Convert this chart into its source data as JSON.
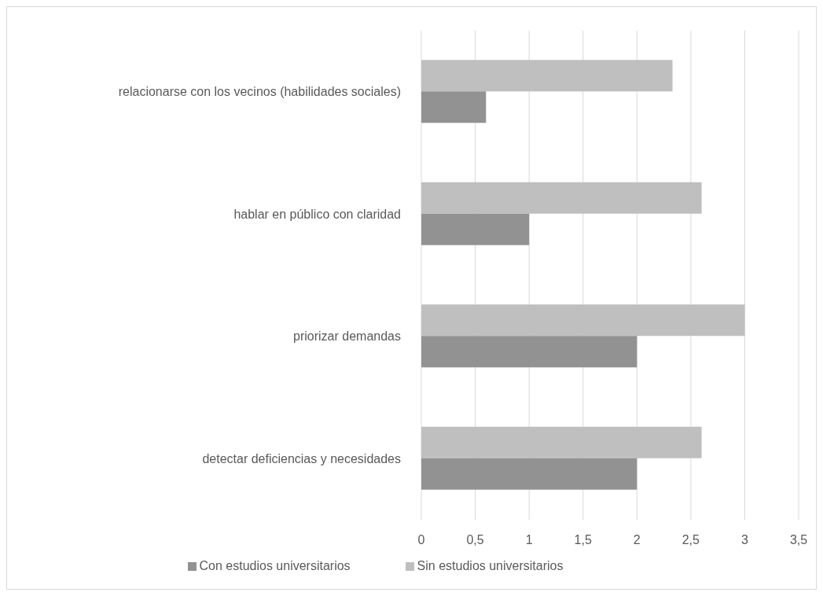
{
  "chart_data": {
    "type": "bar",
    "orientation": "horizontal",
    "categories": [
      "relacionarse con los vecinos (habilidades sociales)",
      "hablar en público con claridad",
      "priorizar demandas",
      "detectar deficiencias y necesidades"
    ],
    "series": [
      {
        "name": "Sin estudios universitarios",
        "color": "#bfbfbf",
        "values": [
          2.33,
          2.6,
          3,
          2.6
        ]
      },
      {
        "name": "Con estudios universitarios",
        "color": "#929292",
        "values": [
          0.6,
          1,
          2,
          2
        ]
      }
    ],
    "xlim": [
      0,
      3.5
    ],
    "xticks": [
      0,
      {
        "value": 0.5,
        "label": "0,5"
      },
      1,
      {
        "value": 1.5,
        "label": "1,5"
      },
      2,
      {
        "value": 2.5,
        "label": "2,5"
      },
      3,
      {
        "value": 3.5,
        "label": "3,5"
      }
    ],
    "grid": "x",
    "legend": "bottom"
  }
}
